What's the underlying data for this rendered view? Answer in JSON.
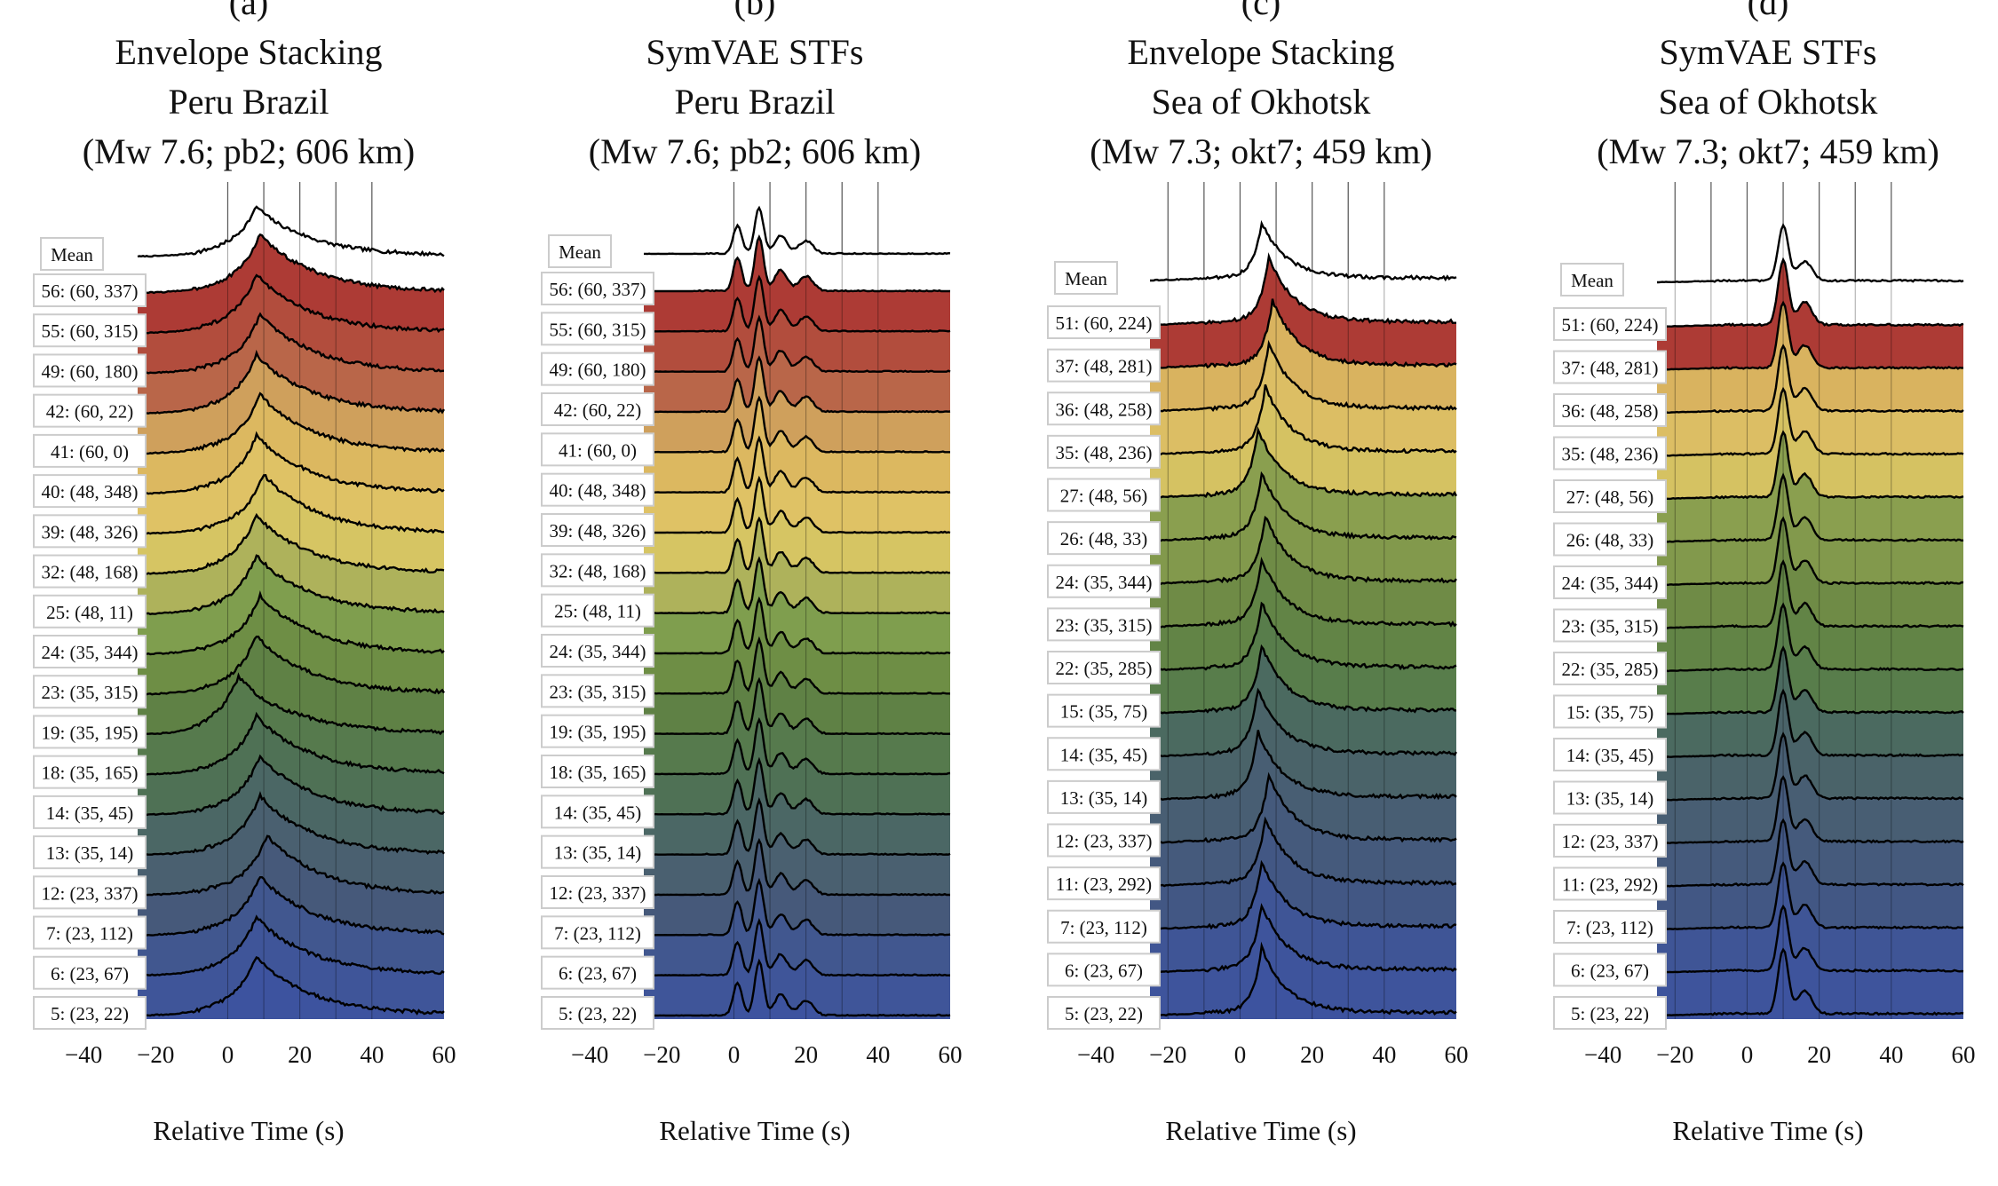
{
  "figure": {
    "xlabel": "Relative Time (s)",
    "x_ticks": [
      -40,
      -20,
      0,
      20,
      40,
      60
    ],
    "x_tick_labels": [
      "−40",
      "−20",
      "0",
      "20",
      "40",
      "60"
    ]
  },
  "chart_data": [
    {
      "type": "area",
      "panel": "(a)",
      "title_lines": [
        "Envelope Stacking",
        "Peru Brazil",
        "(Mw 7.6; pb2; 606 km)"
      ],
      "xlabel": "Relative Time (s)",
      "xlim": [
        -25,
        60
      ],
      "vlines": [
        0,
        10,
        20,
        30,
        40
      ],
      "mean_label": "Mean",
      "traces": [
        "56: (60, 337)",
        "55: (60, 315)",
        "49: (60, 180)",
        "42: (60, 22)",
        "41: (60, 0)",
        "40: (48, 348)",
        "39: (48, 326)",
        "32: (48, 168)",
        "25: (48, 11)",
        "24: (35, 344)",
        "23: (35, 315)",
        "19: (35, 195)",
        "18: (35, 165)",
        "14: (35, 45)",
        "13: (35, 14)",
        "12: (23, 337)",
        "7: (23, 112)",
        "6: (23, 67)",
        "5: (23, 22)"
      ],
      "colors": [
        "#ad3b35",
        "#b24d3d",
        "#b96649",
        "#cfa05c",
        "#dcb860",
        "#dfc265",
        "#d6c563",
        "#aeb25b",
        "#7f9e4e",
        "#6e8e45",
        "#5f8145",
        "#567a4d",
        "#4f7155",
        "#4b6765",
        "#4a6070",
        "#46597a",
        "#41578f",
        "#3f5599",
        "#3d539f"
      ],
      "mean_peak_time": 8,
      "peak_times": [
        9,
        8,
        9,
        8,
        9,
        8,
        10,
        8,
        8,
        9,
        8,
        3,
        8,
        9,
        9,
        11,
        9,
        8,
        8
      ]
    },
    {
      "type": "area",
      "panel": "(b)",
      "title_lines": [
        "SymVAE STFs",
        "Peru Brazil",
        "(Mw 7.6; pb2; 606 km)"
      ],
      "xlabel": "Relative Time (s)",
      "xlim": [
        -25,
        60
      ],
      "vlines": [
        0,
        10,
        20,
        30,
        40
      ],
      "mean_label": "Mean",
      "traces": [
        "56: (60, 337)",
        "55: (60, 315)",
        "49: (60, 180)",
        "42: (60, 22)",
        "41: (60, 0)",
        "40: (48, 348)",
        "39: (48, 326)",
        "32: (48, 168)",
        "25: (48, 11)",
        "24: (35, 344)",
        "23: (35, 315)",
        "19: (35, 195)",
        "18: (35, 165)",
        "14: (35, 45)",
        "13: (35, 14)",
        "12: (23, 337)",
        "7: (23, 112)",
        "6: (23, 67)",
        "5: (23, 22)"
      ],
      "colors": [
        "#ad3b35",
        "#b24d3d",
        "#b96649",
        "#cfa05c",
        "#dcb860",
        "#dfc265",
        "#d6c563",
        "#aeb25b",
        "#7f9e4e",
        "#6e8e45",
        "#5f8145",
        "#567a4d",
        "#4f7155",
        "#4b6765",
        "#4a6070",
        "#46597a",
        "#41578f",
        "#3f5599",
        "#3d539f"
      ],
      "mean_peak_time": 7,
      "peak_times": [
        7,
        7,
        7,
        7,
        7,
        7,
        7,
        7,
        7,
        7,
        7,
        7,
        7,
        7,
        7,
        7,
        7,
        7,
        7
      ]
    },
    {
      "type": "area",
      "panel": "(c)",
      "title_lines": [
        "Envelope Stacking",
        "Sea of Okhotsk",
        "(Mw 7.3; okt7; 459 km)"
      ],
      "xlabel": "Relative Time (s)",
      "xlim": [
        -25,
        60
      ],
      "vlines": [
        -20,
        -10,
        0,
        10,
        20,
        30,
        40
      ],
      "mean_label": "Mean",
      "traces": [
        "51: (60, 224)",
        "37: (48, 281)",
        "36: (48, 258)",
        "35: (48, 236)",
        "27: (48, 56)",
        "26: (48, 33)",
        "24: (35, 344)",
        "23: (35, 315)",
        "22: (35, 285)",
        "15: (35, 75)",
        "14: (35, 45)",
        "13: (35, 14)",
        "12: (23, 337)",
        "11: (23, 292)",
        "7: (23, 112)",
        "6: (23, 67)",
        "5: (23, 22)"
      ],
      "colors": [
        "#ad3b35",
        "#d9b35f",
        "#dcbe64",
        "#d5c262",
        "#8a9f4f",
        "#82994c",
        "#6f8b46",
        "#628446",
        "#587d4b",
        "#4b6a60",
        "#4a6369",
        "#485e73",
        "#455a7c",
        "#425784",
        "#3f5596",
        "#3e549c",
        "#3d539f"
      ],
      "mean_peak_time": 6,
      "peak_times": [
        8,
        9,
        8,
        7,
        5,
        6,
        7,
        6,
        6,
        6,
        5,
        5,
        8,
        7,
        6,
        6,
        6
      ]
    },
    {
      "type": "area",
      "panel": "(d)",
      "title_lines": [
        "SymVAE STFs",
        "Sea of Okhotsk",
        "(Mw 7.3; okt7; 459 km)"
      ],
      "xlabel": "Relative Time (s)",
      "xlim": [
        -25,
        60
      ],
      "vlines": [
        -20,
        -10,
        0,
        10,
        20,
        30,
        40
      ],
      "mean_label": "Mean",
      "traces": [
        "51: (60, 224)",
        "37: (48, 281)",
        "36: (48, 258)",
        "35: (48, 236)",
        "27: (48, 56)",
        "26: (48, 33)",
        "24: (35, 344)",
        "23: (35, 315)",
        "22: (35, 285)",
        "15: (35, 75)",
        "14: (35, 45)",
        "13: (35, 14)",
        "12: (23, 337)",
        "11: (23, 292)",
        "7: (23, 112)",
        "6: (23, 67)",
        "5: (23, 22)"
      ],
      "colors": [
        "#ad3b35",
        "#d9b35f",
        "#dcbe64",
        "#d5c262",
        "#8a9f4f",
        "#82994c",
        "#6f8b46",
        "#628446",
        "#587d4b",
        "#4b6a60",
        "#4a6369",
        "#485e73",
        "#455a7c",
        "#425784",
        "#3f5596",
        "#3e549c",
        "#3d539f"
      ],
      "mean_peak_time": 10,
      "peak_times": [
        10,
        10,
        10,
        10,
        10,
        10,
        10,
        10,
        10,
        10,
        10,
        10,
        10,
        10,
        10,
        10,
        10
      ]
    }
  ]
}
